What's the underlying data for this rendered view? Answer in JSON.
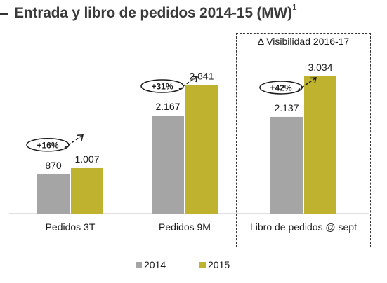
{
  "title": "Entrada y libro de pedidos 2014-15 (MW)",
  "title_sup": "1",
  "visibility_label": "Δ Visibilidad 2016-17",
  "colors": {
    "s2014": "#a5a5a5",
    "s2015": "#bfb22f",
    "axis": "#bfbfbf",
    "text": "#1a1a1a"
  },
  "chart_data": {
    "type": "bar",
    "categories": [
      "Pedidos 3T",
      "Pedidos 9M",
      "Libro de pedidos @ sept"
    ],
    "series": [
      {
        "name": "2014",
        "values": [
          870,
          2167,
          2137
        ],
        "labels": [
          "870",
          "2.167",
          "2.137"
        ]
      },
      {
        "name": "2015",
        "values": [
          1007,
          2841,
          3034
        ],
        "labels": [
          "1.007",
          "2.841",
          "3.034"
        ]
      }
    ],
    "growth_labels": [
      "+16%",
      "+31%",
      "+42%"
    ],
    "ylim": [
      0,
      3034
    ],
    "grid": false,
    "legend_position": "bottom"
  }
}
